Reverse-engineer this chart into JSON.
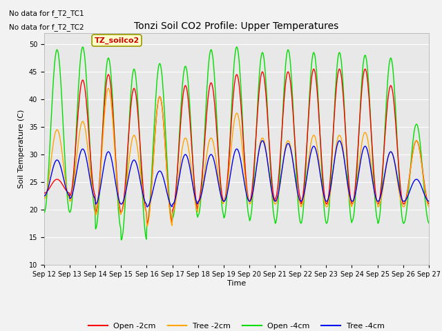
{
  "title": "Tonzi Soil CO2 Profile: Upper Temperatures",
  "ylabel": "Soil Temperature (C)",
  "xlabel": "Time",
  "text_no_data": [
    "No data for f_T2_TC1",
    "No data for f_T2_TC2"
  ],
  "annotation_box": "TZ_soilco2",
  "ylim": [
    10,
    52
  ],
  "yticks": [
    10,
    15,
    20,
    25,
    30,
    35,
    40,
    45,
    50
  ],
  "x_tick_days": [
    12,
    13,
    14,
    15,
    16,
    17,
    18,
    19,
    20,
    21,
    22,
    23,
    24,
    25,
    26,
    27
  ],
  "colors": {
    "open_2cm": "#ff0000",
    "tree_2cm": "#ffa500",
    "open_4cm": "#00dd00",
    "tree_4cm": "#0000ee"
  },
  "legend_labels": [
    "Open -2cm",
    "Tree -2cm",
    "Open -4cm",
    "Tree -4cm"
  ],
  "bg_color": "#e8e8e8",
  "grid_color": "#ffffff",
  "num_cycles": 15,
  "open_2cm_peaks": [
    25.5,
    43.5,
    44.5,
    42.0,
    40.5,
    42.5,
    43.0,
    44.5,
    45.0,
    45.0,
    45.5,
    45.5,
    45.5,
    42.5,
    32.5
  ],
  "open_2cm_troughs": [
    23.0,
    22.5,
    19.5,
    19.5,
    17.5,
    20.0,
    21.5,
    21.5,
    21.5,
    22.0,
    21.0,
    21.0,
    21.0,
    21.0,
    21.0
  ],
  "tree_2cm_peaks": [
    34.5,
    36.0,
    42.0,
    33.5,
    40.5,
    33.0,
    33.0,
    37.5,
    33.0,
    32.5,
    33.5,
    33.5,
    34.0,
    30.5,
    32.5
  ],
  "tree_2cm_troughs": [
    22.0,
    21.5,
    19.0,
    19.5,
    17.0,
    19.5,
    21.0,
    21.5,
    21.0,
    21.0,
    20.5,
    20.5,
    21.0,
    20.5,
    20.5
  ],
  "open_4cm_peaks": [
    49.0,
    49.5,
    47.5,
    45.5,
    46.5,
    46.0,
    49.0,
    49.5,
    48.5,
    49.0,
    48.5,
    48.5,
    48.0,
    47.5,
    35.5
  ],
  "open_4cm_troughs": [
    19.5,
    19.5,
    16.5,
    14.5,
    17.5,
    18.5,
    19.0,
    18.5,
    18.0,
    17.5,
    17.5,
    17.5,
    18.0,
    17.5,
    17.5
  ],
  "tree_4cm_peaks": [
    29.0,
    31.0,
    30.5,
    29.0,
    27.0,
    30.0,
    30.0,
    31.0,
    32.5,
    32.0,
    31.5,
    32.5,
    31.5,
    30.5,
    25.5
  ],
  "tree_4cm_troughs": [
    22.5,
    22.0,
    21.0,
    21.0,
    20.5,
    21.0,
    21.5,
    21.5,
    21.5,
    21.5,
    21.5,
    21.5,
    21.5,
    21.5,
    21.5
  ]
}
